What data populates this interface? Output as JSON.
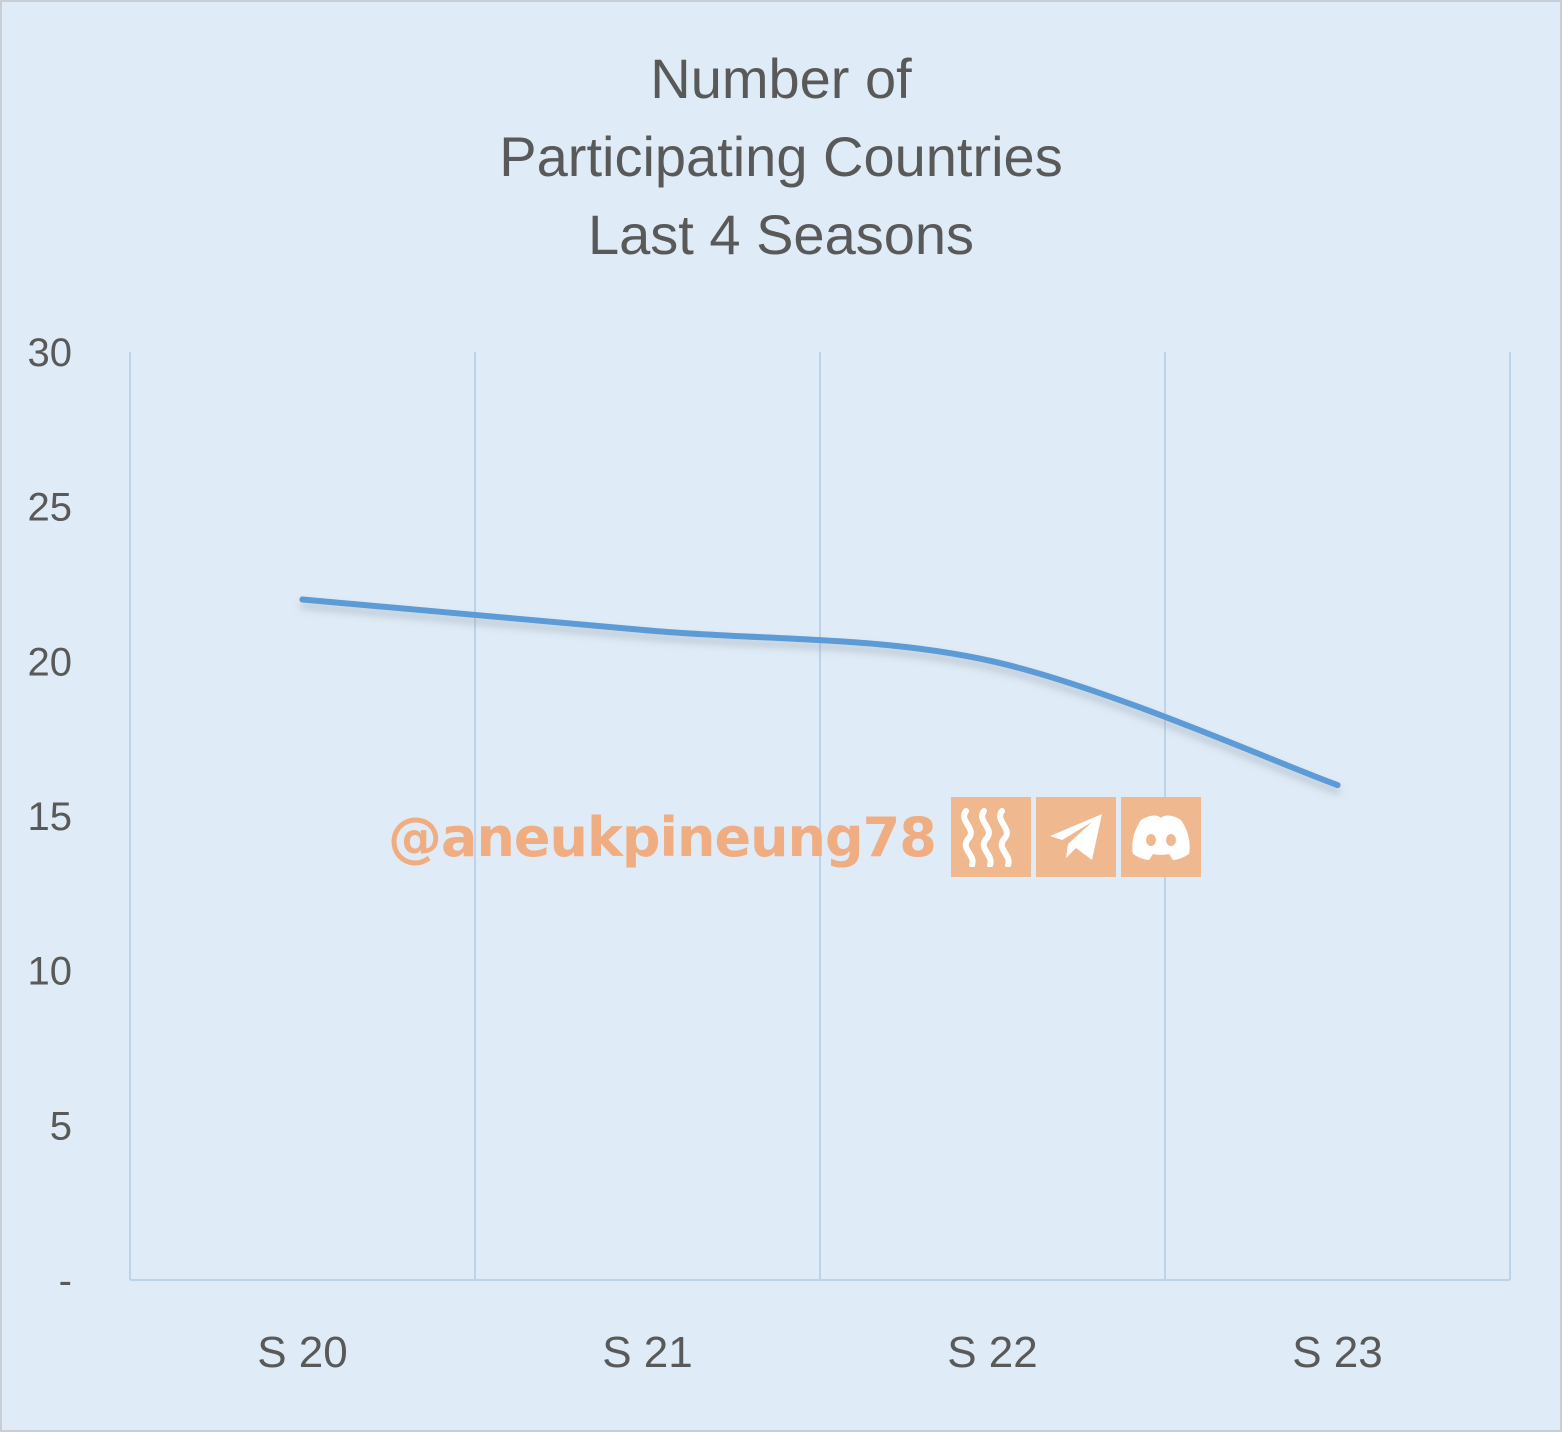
{
  "chart_data": {
    "type": "line",
    "title_lines": [
      "Number of",
      "Participating Countries",
      "Last 4 Seasons"
    ],
    "categories": [
      "S 20",
      "S 21",
      "S 22",
      "S 23"
    ],
    "series": [
      {
        "values": [
          22,
          21,
          20,
          16
        ],
        "color": "#5b9bd5"
      }
    ],
    "yticks": [
      "-",
      "5",
      "10",
      "15",
      "20",
      "25",
      "30"
    ],
    "ylim": [
      0,
      30
    ],
    "grid": "vertical",
    "smooth": true
  },
  "watermark": {
    "handle": "@aneukpineung78",
    "icons": [
      "steem-icon",
      "telegram-icon",
      "discord-icon"
    ],
    "color": "#f0ad82"
  }
}
